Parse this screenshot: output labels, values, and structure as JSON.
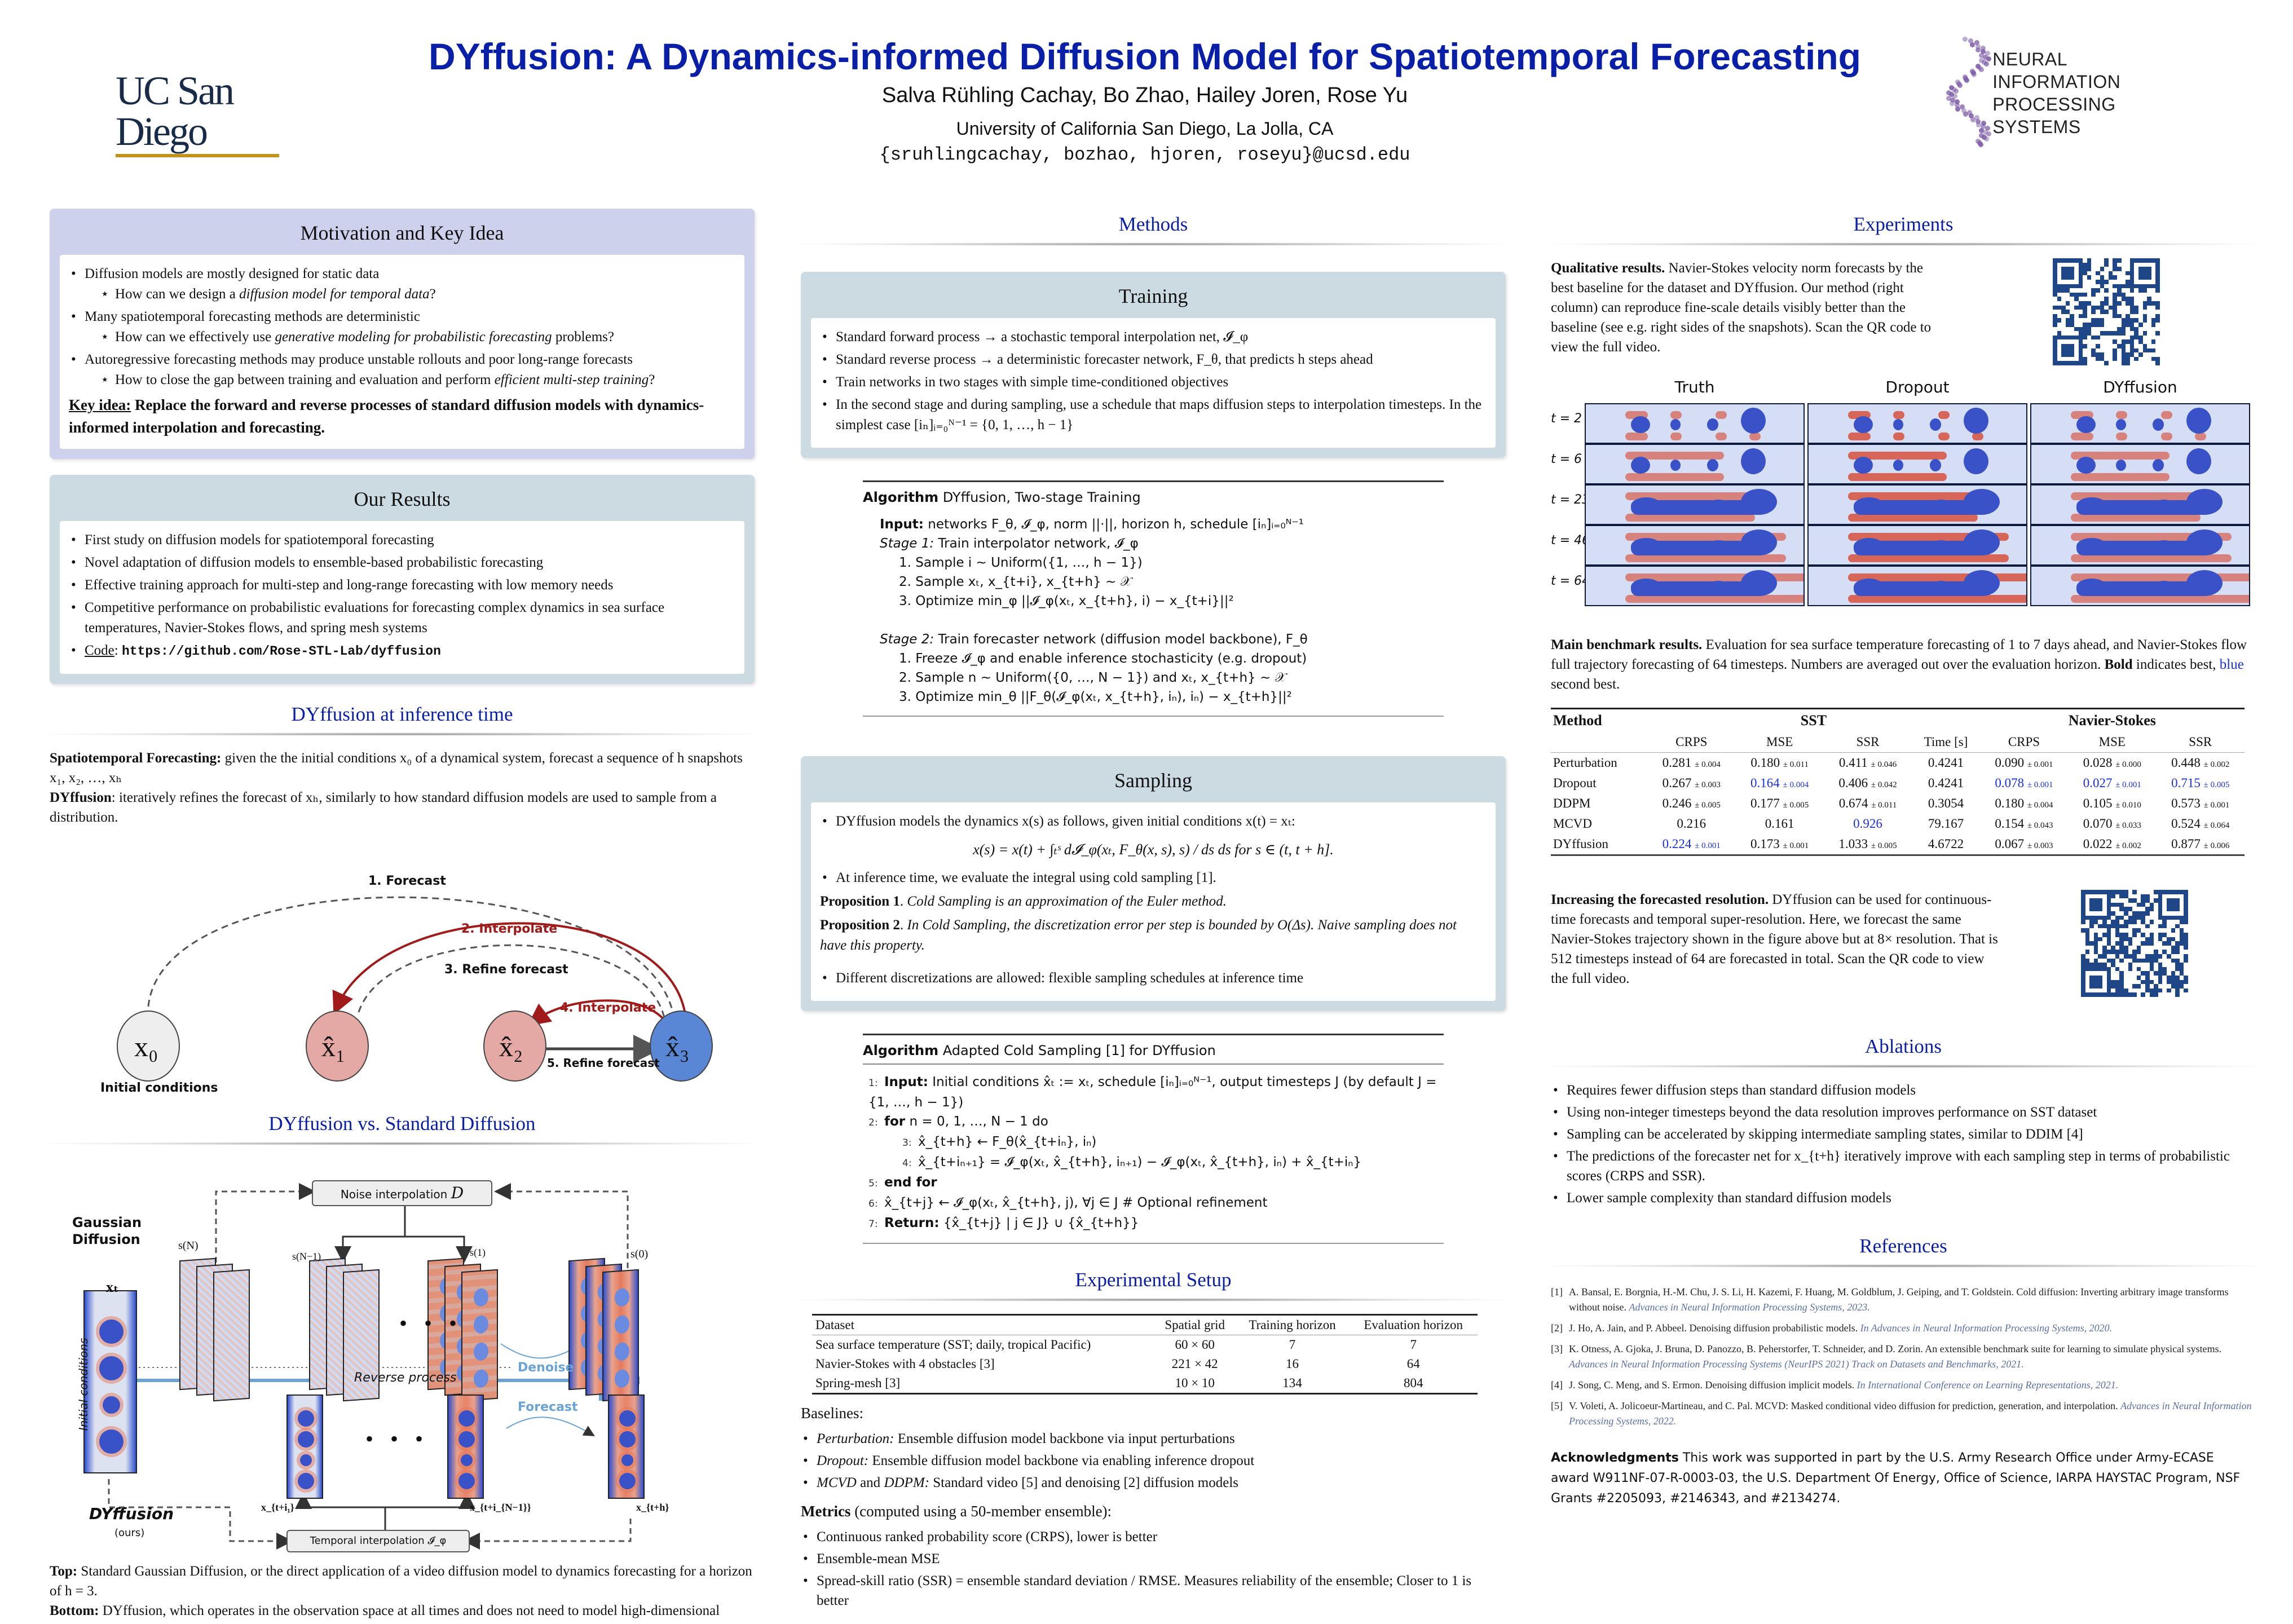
{
  "header": {
    "title": "DYffusion: A Dynamics-informed Diffusion Model for Spatiotemporal Forecasting",
    "authors": "Salva Rühling Cachay, Bo Zhao, Hailey Joren, Rose Yu",
    "affiliation": "University of California San Diego, La Jolla, CA",
    "emails": "{sruhlingcachay, bozhao, hjoren, roseyu}@ucsd.edu",
    "left_logo": "UC San Diego",
    "right_logo_line1": "NEURAL INFORMATION",
    "right_logo_line2": "PROCESSING SYSTEMS",
    "colors": {
      "title": "#0a1fa8",
      "ucsd_navy": "#182b49",
      "ucsd_gold": "#c69214",
      "neurips_purple": "#7c5ba6"
    }
  },
  "motivation": {
    "title": "Motivation and Key Idea",
    "items": [
      {
        "text": "Diffusion models are mostly designed for static data",
        "sub_pre": "How can we design a ",
        "sub_em": "diffusion model for temporal data",
        "sub_post": "?"
      },
      {
        "text": "Many spatiotemporal forecasting methods are deterministic",
        "sub_pre": "How can we effectively use ",
        "sub_em": "generative modeling for probabilistic forecasting",
        "sub_post": " problems?"
      },
      {
        "text": "Autoregressive forecasting methods may produce unstable rollouts and poor long-range forecasts",
        "sub_pre": "How to close the gap between training and evaluation and perform ",
        "sub_em": "efficient multi-step training",
        "sub_post": "?"
      }
    ],
    "key_idea_label": "Key idea:",
    "key_idea_text": " Replace the forward and reverse processes of standard diffusion models with dynamics-informed interpolation and forecasting."
  },
  "results": {
    "title": "Our Results",
    "items": [
      "First study on diffusion models for spatiotemporal forecasting",
      "Novel adaptation of diffusion models to ensemble-based probabilistic forecasting",
      "Effective training approach for multi-step and long-range forecasting with low memory needs",
      "Competitive performance on probabilistic evaluations for forecasting complex dynamics in sea surface temperatures, Navier-Stokes flows, and spring mesh systems"
    ],
    "code_label": "Code",
    "code_url": "https://github.com/Rose-STL-Lab/dyffusion"
  },
  "inference": {
    "title": "DYffusion at inference time",
    "p1_bold": "Spatiotemporal Forecasting:",
    "p1_text": " given the the initial conditions x₀ of a dynamical system, forecast a sequence of h snapshots x₁, x₂, …, xₕ",
    "p2_bold": "DYffusion",
    "p2_text": ": iteratively refines the forecast of xₕ, similarly to how standard diffusion models are used to sample from a distribution.",
    "diagram": {
      "nodes": [
        "x₀",
        "x̂₁",
        "x̂₂",
        "x̂₃"
      ],
      "node_caption": "Initial conditions",
      "steps": [
        "1. Forecast",
        "2. Interpolate",
        "3. Refine forecast",
        "4. Interpolate",
        "5. Refine forecast"
      ]
    }
  },
  "comparison": {
    "title": "DYffusion vs. Standard Diffusion",
    "labels": {
      "gaussian": "Gaussian Diffusion",
      "noise_interp": "Noise interpolation",
      "noise_interp_sym": "D",
      "sN": "s(N)",
      "sN1": "s(N−1)",
      "s1": "s(1)",
      "s0": "s(0)",
      "initial": "Initial conditions",
      "xt": "xₜ",
      "reverse": "Reverse process",
      "denoise": "Denoise",
      "forecast": "Forecast",
      "dyffusion": "DYffusion",
      "ours": "(ours)",
      "xti1": "x_{t+i₁}",
      "xtiN1": "x_{t+i_{N−1}}",
      "xth": "x_{t+h}",
      "temporal_interp": "Temporal interpolation 𝓘_φ",
      "ellipsis": "• • •"
    },
    "caption_top_bold": "Top:",
    "caption_top": " Standard Gaussian Diffusion, or the direct application of a video diffusion model to dynamics forecasting for a horizon of h = 3.",
    "caption_bottom_bold": "Bottom:",
    "caption_bottom": " DYffusion, which operates in the observation space at all times and does not need to model high-dimensional videos at each diffusion state."
  },
  "methods": {
    "title": "Methods",
    "training": {
      "title": "Training",
      "items": [
        "Standard forward process → a stochastic temporal interpolation net, 𝓘_φ",
        "Standard reverse process → a deterministic forecaster network, F_θ, that predicts h steps ahead",
        "Train networks in two stages with simple time-conditioned objectives",
        "In the second stage and during sampling, use a schedule that maps diffusion steps to interpolation timesteps. In the simplest case [iₙ]ᵢ₌₀ᴺ⁻¹ = {0, 1, …, h − 1}"
      ]
    },
    "algo1": {
      "label": "Algorithm",
      "name": "DYffusion, Two-stage Training",
      "input_label": "Input:",
      "input_text": " networks F_θ, 𝓘_φ, norm ||·||, horizon h, schedule [iₙ]ᵢ₌₀ᴺ⁻¹",
      "stage1_label": "Stage 1:",
      "stage1_text": " Train interpolator network, 𝓘_φ",
      "stage1_steps": [
        "1. Sample i ∼ Uniform({1, …, h − 1})",
        "2. Sample xₜ, x_{t+i}, x_{t+h} ∼ 𝒳",
        "3. Optimize min_φ ||𝓘_φ(xₜ, x_{t+h}, i) − x_{t+i}||²"
      ],
      "stage2_label": "Stage 2:",
      "stage2_text": " Train forecaster network (diffusion model backbone), F_θ",
      "stage2_steps": [
        "1. Freeze 𝓘_φ and enable inference stochasticity (e.g. dropout)",
        "2. Sample n ∼ Uniform({0, …, N − 1}) and xₜ, x_{t+h} ∼ 𝒳",
        "3. Optimize min_θ ||F_θ(𝓘_φ(xₜ, x_{t+h}, iₙ), iₙ) − x_{t+h}||²"
      ]
    },
    "sampling": {
      "title": "Sampling",
      "item1": "DYffusion models the dynamics x(s) as follows, given initial conditions x(t) = xₜ:",
      "equation": "x(s) = x(t) + ∫ₜˢ  d𝓘_φ(xₜ, F_θ(x, s), s) / ds  ds      for s ∈ (t, t + h].",
      "item2": "At inference time, we evaluate the integral using cold sampling [1].",
      "prop1_label": "Proposition 1",
      "prop1_text": "Cold Sampling is an approximation of the Euler method.",
      "prop2_label": "Proposition 2",
      "prop2_text": "In Cold Sampling, the discretization error per step is bounded by O(Δs). Naive sampling does not have this property.",
      "item3": "Different discretizations are allowed: flexible sampling schedules at inference time"
    },
    "algo2": {
      "label": "Algorithm",
      "name": "Adapted Cold Sampling [1] for DYffusion",
      "lines": [
        {
          "n": "1:",
          "bold": "Input:",
          "text": " Initial conditions x̂ₜ := xₜ, schedule [iₙ]ᵢ₌₀ᴺ⁻¹, output timesteps J (by default J = {1, …, h − 1})",
          "indent": 0
        },
        {
          "n": "2:",
          "bold": "for",
          "text": " n = 0, 1, …, N − 1 do",
          "indent": 0
        },
        {
          "n": "3:",
          "bold": "",
          "text": "x̂_{t+h} ← F_θ(x̂_{t+iₙ}, iₙ)",
          "indent": 1
        },
        {
          "n": "4:",
          "bold": "",
          "text": "x̂_{t+iₙ₊₁} = 𝓘_φ(xₜ, x̂_{t+h}, iₙ₊₁) − 𝓘_φ(xₜ, x̂_{t+h}, iₙ) + x̂_{t+iₙ}",
          "indent": 1
        },
        {
          "n": "5:",
          "bold": "end for",
          "text": "",
          "indent": 0
        },
        {
          "n": "6:",
          "bold": "",
          "text": "x̂_{t+j} ← 𝓘_φ(xₜ, x̂_{t+h}, j), ∀j ∈ J     # Optional refinement",
          "indent": 0
        },
        {
          "n": "7:",
          "bold": "Return:",
          "text": " {x̂_{t+j} | j ∈ J} ∪ {x̂_{t+h}}",
          "indent": 0
        }
      ]
    }
  },
  "setup": {
    "title": "Experimental Setup",
    "table": {
      "headers": [
        "Dataset",
        "Spatial grid",
        "Training horizon",
        "Evaluation horizon"
      ],
      "rows": [
        [
          "Sea surface temperature (SST; daily, tropical Pacific)",
          "60 × 60",
          "7",
          "7"
        ],
        [
          "Navier-Stokes with 4 obstacles [3]",
          "221 × 42",
          "16",
          "64"
        ],
        [
          "Spring-mesh [3]",
          "10 × 10",
          "134",
          "804"
        ]
      ]
    },
    "baselines_title": "Baselines:",
    "baselines": [
      {
        "em": "Perturbation:",
        "text": " Ensemble diffusion model backbone via input perturbations"
      },
      {
        "em": "Dropout:",
        "text": " Ensemble diffusion model backbone via enabling inference dropout"
      },
      {
        "em": "MCVD",
        "mid": " and ",
        "em2": "DDPM:",
        "text": " Standard video [5] and denoising [2] diffusion models"
      }
    ],
    "metrics_title": "Metrics",
    "metrics_sub": " (computed using a 50-member ensemble):",
    "metrics": [
      "Continuous ranked probability score (CRPS), lower is better",
      "Ensemble-mean MSE",
      "Spread-skill ratio (SSR) = ensemble standard deviation / RMSE. Measures reliability of the ensemble; Closer to 1 is better"
    ]
  },
  "experiments": {
    "title": "Experiments",
    "qual_bold": "Qualitative results.",
    "qual_text": " Navier-Stokes velocity norm forecasts by the best baseline for the dataset and DYffusion. Our method (right column) can reproduce fine-scale details visibly better than the baseline (see e.g. right sides of the snapshots). Scan the QR code to view the full video.",
    "qr1_label": "qr-code",
    "figure": {
      "columns": [
        "Truth",
        "Dropout",
        "DYffusion"
      ],
      "rows": [
        "t = 2",
        "t = 6",
        "t = 23",
        "t = 46",
        "t = 64"
      ]
    },
    "bench_bold": "Main benchmark results.",
    "bench_text": " Evaluation for sea surface temperature forecasting of 1 to 7 days ahead, and Navier-Stokes flow full trajectory forecasting of 64 timesteps. Numbers are averaged out over the evaluation horizon. ",
    "bench_bold2": "Bold",
    "bench_text2": " indicates best, ",
    "bench_blue": "blue",
    "bench_text3": " second best.",
    "bench_table": {
      "group_headers": [
        "Method",
        "SST",
        "Navier-Stokes"
      ],
      "sub_headers": [
        "",
        "CRPS",
        "MSE",
        "SSR",
        "Time [s]",
        "CRPS",
        "MSE",
        "SSR"
      ],
      "rows": [
        {
          "method": "Perturbation",
          "cells": [
            {
              "v": "0.281",
              "pm": "± 0.004",
              "s": ""
            },
            {
              "v": "0.180",
              "pm": "± 0.011",
              "s": ""
            },
            {
              "v": "0.411",
              "pm": "± 0.046",
              "s": ""
            },
            {
              "v": "0.4241",
              "pm": "",
              "s": ""
            },
            {
              "v": "0.090",
              "pm": "± 0.001",
              "s": ""
            },
            {
              "v": "0.028",
              "pm": "± 0.000",
              "s": ""
            },
            {
              "v": "0.448",
              "pm": "± 0.002",
              "s": ""
            }
          ]
        },
        {
          "method": "Dropout",
          "cells": [
            {
              "v": "0.267",
              "pm": "± 0.003",
              "s": ""
            },
            {
              "v": "0.164",
              "pm": "± 0.004",
              "s": "second"
            },
            {
              "v": "0.406",
              "pm": "± 0.042",
              "s": ""
            },
            {
              "v": "0.4241",
              "pm": "",
              "s": ""
            },
            {
              "v": "0.078",
              "pm": "± 0.001",
              "s": "second"
            },
            {
              "v": "0.027",
              "pm": "± 0.001",
              "s": "second"
            },
            {
              "v": "0.715",
              "pm": "± 0.005",
              "s": "second"
            }
          ]
        },
        {
          "method": "DDPM",
          "cells": [
            {
              "v": "0.246",
              "pm": "± 0.005",
              "s": ""
            },
            {
              "v": "0.177",
              "pm": "± 0.005",
              "s": ""
            },
            {
              "v": "0.674",
              "pm": "± 0.011",
              "s": ""
            },
            {
              "v": "0.3054",
              "pm": "",
              "s": ""
            },
            {
              "v": "0.180",
              "pm": "± 0.004",
              "s": ""
            },
            {
              "v": "0.105",
              "pm": "± 0.010",
              "s": ""
            },
            {
              "v": "0.573",
              "pm": "± 0.001",
              "s": ""
            }
          ]
        },
        {
          "method": "MCVD",
          "cells": [
            {
              "v": "0.216",
              "pm": "",
              "s": "best"
            },
            {
              "v": "0.161",
              "pm": "",
              "s": "best"
            },
            {
              "v": "0.926",
              "pm": "",
              "s": "second"
            },
            {
              "v": "79.167",
              "pm": "",
              "s": ""
            },
            {
              "v": "0.154",
              "pm": "± 0.043",
              "s": ""
            },
            {
              "v": "0.070",
              "pm": "± 0.033",
              "s": ""
            },
            {
              "v": "0.524",
              "pm": "± 0.064",
              "s": ""
            }
          ]
        },
        {
          "method": "DYffusion",
          "cells": [
            {
              "v": "0.224",
              "pm": "± 0.001",
              "s": "second"
            },
            {
              "v": "0.173",
              "pm": "± 0.001",
              "s": ""
            },
            {
              "v": "1.033",
              "pm": "± 0.005",
              "s": "best"
            },
            {
              "v": "4.6722",
              "pm": "",
              "s": ""
            },
            {
              "v": "0.067",
              "pm": "± 0.003",
              "s": "best"
            },
            {
              "v": "0.022",
              "pm": "± 0.002",
              "s": "best"
            },
            {
              "v": "0.877",
              "pm": "± 0.006",
              "s": "best"
            }
          ]
        }
      ]
    },
    "res_bold": "Increasing the forecasted resolution.",
    "res_text": " DYffusion can be used for continuous-time forecasts and temporal super-resolution. Here, we forecast the same Navier-Stokes trajectory shown in the figure above but at 8× resolution. That is 512 timesteps instead of 64 are forecasted in total. Scan the QR code to view the full video."
  },
  "ablations": {
    "title": "Ablations",
    "items": [
      "Requires fewer diffusion steps than standard diffusion models",
      "Using non-integer timesteps beyond the data resolution improves performance on SST dataset",
      "Sampling can be accelerated by skipping intermediate sampling states, similar to DDIM [4]",
      "The predictions of the forecaster net for x_{t+h} iteratively improve with each sampling step in terms of probabilistic scores (CRPS and SSR).",
      "Lower sample complexity than standard diffusion models"
    ]
  },
  "references": {
    "title": "References",
    "items": [
      {
        "n": "[1]",
        "text": "A. Bansal, E. Borgnia, H.-M. Chu, J. S. Li, H. Kazemi, F. Huang, M. Goldblum, J. Geiping, and T. Goldstein. Cold diffusion: Inverting arbitrary image transforms without noise. ",
        "venue": "Advances in Neural Information Processing Systems, 2023."
      },
      {
        "n": "[2]",
        "text": "J. Ho, A. Jain, and P. Abbeel. Denoising diffusion probabilistic models. ",
        "venue": "In Advances in Neural Information Processing Systems, 2020."
      },
      {
        "n": "[3]",
        "text": "K. Otness, A. Gjoka, J. Bruna, D. Panozzo, B. Peherstorfer, T. Schneider, and D. Zorin. An extensible benchmark suite for learning to simulate physical systems. ",
        "venue": "Advances in Neural Information Processing Systems (NeurIPS 2021) Track on Datasets and Benchmarks, 2021."
      },
      {
        "n": "[4]",
        "text": "J. Song, C. Meng, and S. Ermon. Denoising diffusion implicit models. ",
        "venue": "In International Conference on Learning Representations, 2021."
      },
      {
        "n": "[5]",
        "text": "V. Voleti, A. Jolicoeur-Martineau, and C. Pal. MCVD: Masked conditional video diffusion for prediction, generation, and interpolation. ",
        "venue": "Advances in Neural Information Processing Systems, 2022."
      }
    ]
  },
  "acknowledgments": {
    "label": "Acknowledgments",
    "text": " This work was supported in part by the U.S. Army Research Office under Army-ECASE award W911NF-07-R-0003-03, the U.S. Department Of Energy, Office of Science, IARPA HAYSTAC Program, NSF Grants #2205093, #2146343, and #2134274."
  },
  "colors": {
    "section_title_blue": "#0a1fa8",
    "block_purple": "#cdd1ec",
    "block_grey": "#ccdae2",
    "second_best_blue": "#1a2fe0",
    "diagram_red": "#a11a1a",
    "node_pink": "#e4a9a4",
    "node_blue": "#5a86d6",
    "qr_blue": "#1f4788"
  }
}
